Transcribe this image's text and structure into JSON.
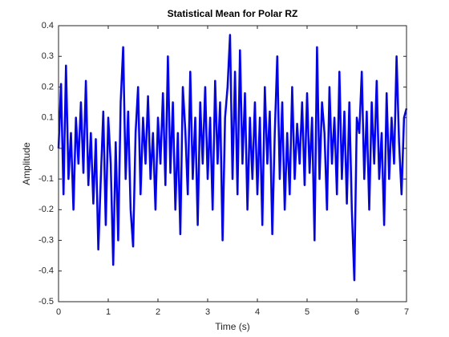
{
  "chart_data": {
    "type": "line",
    "title": "Statistical Mean for Polar RZ",
    "x_label": "Time (s)",
    "y_label": "Amplitude",
    "xlim": [
      0,
      7
    ],
    "ylim": [
      -0.5,
      0.4
    ],
    "xticks": [
      0,
      1,
      2,
      3,
      4,
      5,
      6,
      7
    ],
    "yticks": [
      -0.5,
      -0.4,
      -0.3,
      -0.2,
      -0.1,
      0,
      0.1,
      0.2,
      0.3,
      0.4
    ],
    "grid": false,
    "series": [
      {
        "color": "#0000ff",
        "x": [
          0,
          0.05,
          0.1,
          0.15,
          0.2,
          0.25,
          0.3,
          0.35,
          0.4,
          0.45,
          0.5,
          0.55,
          0.6,
          0.65,
          0.7,
          0.75,
          0.8,
          0.85,
          0.9,
          0.95,
          1,
          1.05,
          1.1,
          1.15,
          1.2,
          1.25,
          1.3,
          1.35,
          1.4,
          1.45,
          1.5,
          1.55,
          1.6,
          1.65,
          1.7,
          1.75,
          1.8,
          1.85,
          1.9,
          1.95,
          2,
          2.05,
          2.1,
          2.15,
          2.2,
          2.25,
          2.3,
          2.35,
          2.4,
          2.45,
          2.5,
          2.55,
          2.6,
          2.65,
          2.7,
          2.75,
          2.8,
          2.85,
          2.9,
          2.95,
          3,
          3.05,
          3.1,
          3.15,
          3.2,
          3.25,
          3.3,
          3.35,
          3.4,
          3.45,
          3.5,
          3.55,
          3.6,
          3.65,
          3.7,
          3.75,
          3.8,
          3.85,
          3.9,
          3.95,
          4,
          4.05,
          4.1,
          4.15,
          4.2,
          4.25,
          4.3,
          4.35,
          4.4,
          4.45,
          4.5,
          4.55,
          4.6,
          4.65,
          4.7,
          4.75,
          4.8,
          4.85,
          4.9,
          4.95,
          5,
          5.05,
          5.1,
          5.15,
          5.2,
          5.25,
          5.3,
          5.35,
          5.4,
          5.45,
          5.5,
          5.55,
          5.6,
          5.65,
          5.7,
          5.75,
          5.8,
          5.85,
          5.9,
          5.95,
          6,
          6.05,
          6.1,
          6.15,
          6.2,
          6.25,
          6.3,
          6.35,
          6.4,
          6.45,
          6.5,
          6.55,
          6.6,
          6.65,
          6.7,
          6.75,
          6.8,
          6.85,
          6.9,
          6.95,
          7
        ],
        "values": [
          0,
          0.21,
          -0.15,
          0.27,
          -0.1,
          0.05,
          -0.2,
          0.1,
          -0.05,
          0.15,
          -0.08,
          0.22,
          -0.12,
          0.05,
          -0.18,
          0.03,
          -0.33,
          -0.1,
          0.12,
          -0.25,
          0.1,
          -0.05,
          -0.38,
          0.02,
          -0.3,
          0.15,
          0.33,
          -0.1,
          0.12,
          -0.2,
          -0.32,
          0.05,
          0.2,
          -0.15,
          0.1,
          -0.05,
          0.17,
          -0.1,
          0.05,
          -0.2,
          0.1,
          -0.05,
          0.18,
          -0.12,
          0.3,
          -0.08,
          0.15,
          -0.2,
          0.05,
          -0.28,
          0.2,
          0.06,
          -0.15,
          0.25,
          -0.1,
          0.1,
          -0.25,
          0.15,
          -0.05,
          0.2,
          -0.1,
          0.1,
          -0.2,
          0.22,
          -0.05,
          0.15,
          -0.3,
          0.1,
          0.2,
          0.37,
          -0.1,
          0.25,
          -0.15,
          0.32,
          -0.05,
          0.18,
          -0.2,
          0.1,
          -0.1,
          0.15,
          -0.15,
          0.1,
          -0.25,
          0.2,
          -0.05,
          0.12,
          -0.28,
          0.05,
          0.3,
          -0.1,
          0.15,
          -0.2,
          0.05,
          -0.15,
          0.2,
          -0.1,
          0.08,
          -0.05,
          0.15,
          -0.12,
          0.18,
          -0.08,
          0.1,
          -0.3,
          0.33,
          -0.1,
          0.15,
          0.05,
          -0.2,
          0.2,
          -0.05,
          0.1,
          -0.15,
          0.25,
          -0.1,
          0.12,
          -0.18,
          0.15,
          -0.2,
          -0.43,
          0.1,
          0.05,
          0.25,
          -0.1,
          0.12,
          -0.2,
          0.15,
          -0.05,
          0.22,
          -0.1,
          0.05,
          -0.25,
          0.18,
          -0.1,
          0.1,
          -0.05,
          0.3,
          0.02,
          -0.15,
          0.1,
          0.13
        ]
      }
    ]
  }
}
